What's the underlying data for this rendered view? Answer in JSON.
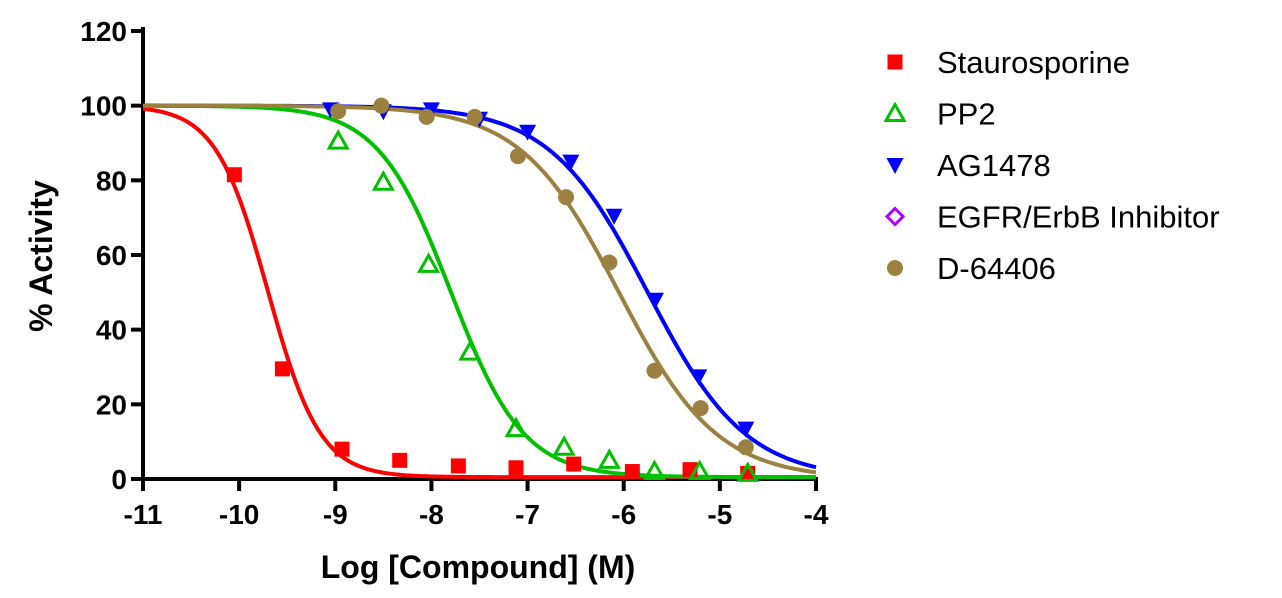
{
  "chart_data": {
    "type": "scatter",
    "xlabel": "Log [Compound] (M)",
    "ylabel": "% Activity",
    "xlim": [
      -11,
      -4
    ],
    "ylim": [
      0,
      120
    ],
    "xticks": [
      -11,
      -10,
      -9,
      -8,
      -7,
      -6,
      -5,
      -4
    ],
    "yticks": [
      0,
      20,
      40,
      60,
      80,
      100,
      120
    ],
    "legend_position": "right",
    "grid": false,
    "series": [
      {
        "name": "Staurosporine",
        "color": "#ff0000",
        "marker": "square-filled",
        "points": [
          [
            -10.05,
            81.5
          ],
          [
            -9.55,
            29.5
          ],
          [
            -8.93,
            8
          ],
          [
            -8.33,
            5
          ],
          [
            -7.72,
            3.5
          ],
          [
            -7.12,
            3
          ],
          [
            -6.52,
            4
          ],
          [
            -5.91,
            2
          ],
          [
            -5.31,
            2.5
          ],
          [
            -4.71,
            1.5
          ]
        ],
        "fit": {
          "bottom": 0.5,
          "top": 100,
          "log_ec50": -9.7,
          "hill": -1.6
        }
      },
      {
        "name": "PP2",
        "color": "#00c000",
        "marker": "triangle-open",
        "points": [
          [
            -8.97,
            90.5
          ],
          [
            -8.5,
            79.5
          ],
          [
            -8.03,
            57.5
          ],
          [
            -7.6,
            34
          ],
          [
            -7.12,
            13.5
          ],
          [
            -6.62,
            8.5
          ],
          [
            -6.15,
            5
          ],
          [
            -5.68,
            2
          ],
          [
            -5.21,
            2
          ],
          [
            -4.71,
            1.5
          ]
        ],
        "fit": {
          "bottom": 0.5,
          "top": 100,
          "log_ec50": -7.8,
          "hill": -1.15
        }
      },
      {
        "name": "AG1478",
        "color": "#0000ff",
        "marker": "triangle-down-filled",
        "points": [
          [
            -9.05,
            99
          ],
          [
            -8.5,
            98.5
          ],
          [
            -8.0,
            99
          ],
          [
            -7.5,
            96.5
          ],
          [
            -7.0,
            93
          ],
          [
            -6.55,
            85
          ],
          [
            -6.1,
            70.5
          ],
          [
            -5.67,
            48
          ],
          [
            -5.22,
            27.5
          ],
          [
            -4.73,
            13.5
          ]
        ],
        "fit": {
          "bottom": 0,
          "top": 100,
          "log_ec50": -5.75,
          "hill": -0.85
        }
      },
      {
        "name": "EGFR/ErbB Inhibitor",
        "color": "#b000ff",
        "marker": "diamond-open",
        "points": []
      },
      {
        "name": "D-64406",
        "color": "#9c8040",
        "marker": "circle-filled",
        "points": [
          [
            -8.97,
            98.5
          ],
          [
            -8.52,
            100
          ],
          [
            -8.05,
            97
          ],
          [
            -7.55,
            97
          ],
          [
            -7.1,
            86.5
          ],
          [
            -6.6,
            75.5
          ],
          [
            -6.15,
            58
          ],
          [
            -5.68,
            29
          ],
          [
            -5.2,
            19
          ],
          [
            -4.73,
            8.5
          ]
        ],
        "fit": {
          "bottom": 0,
          "top": 100,
          "log_ec50": -6.05,
          "hill": -0.85
        }
      }
    ]
  }
}
